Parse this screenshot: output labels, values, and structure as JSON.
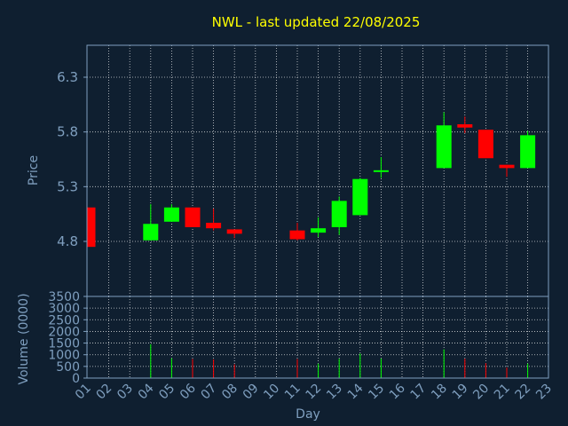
{
  "chart_data": {
    "type": "candlestick",
    "title": "NWL - last updated 22/08/2025",
    "xlabel": "Day",
    "colors": {
      "background": "#0f1f30",
      "up": "#00ff00",
      "down": "#ff0000",
      "text": "#7f9fbf",
      "title": "#ffff00",
      "grid": "#ffffff"
    },
    "x_ticks": [
      "01",
      "02",
      "03",
      "04",
      "05",
      "06",
      "07",
      "08",
      "09",
      "10",
      "11",
      "12",
      "13",
      "14",
      "15",
      "16",
      "17",
      "18",
      "19",
      "20",
      "21",
      "22",
      "23"
    ],
    "price_panel": {
      "ylabel": "Price",
      "ylim": [
        4.8,
        6.3
      ],
      "y_ticks": [
        4.8,
        5.3,
        5.8,
        6.3
      ],
      "y_tick_labels": [
        "4.8",
        "5.3",
        "5.8",
        "6.3"
      ]
    },
    "volume_panel": {
      "ylabel": "Volume (0000)",
      "ylim": [
        0,
        3500
      ],
      "y_ticks": [
        0,
        500,
        1000,
        1500,
        2000,
        2500,
        3000,
        3500
      ],
      "y_tick_labels": [
        "0",
        "500",
        "1000",
        "1500",
        "2000",
        "2500",
        "3000",
        "3500"
      ]
    },
    "candles": [
      {
        "day": 1,
        "open": 5.11,
        "high": 5.11,
        "low": 4.75,
        "close": 4.75,
        "volume": 0
      },
      {
        "day": 4,
        "open": 4.81,
        "high": 5.14,
        "low": 4.81,
        "close": 4.96,
        "volume": 1450
      },
      {
        "day": 5,
        "open": 4.98,
        "high": 5.14,
        "low": 4.98,
        "close": 5.11,
        "volume": 850
      },
      {
        "day": 6,
        "open": 5.11,
        "high": 5.11,
        "low": 4.93,
        "close": 4.93,
        "volume": 820
      },
      {
        "day": 7,
        "open": 4.97,
        "high": 5.1,
        "low": 4.9,
        "close": 4.92,
        "volume": 800
      },
      {
        "day": 8,
        "open": 4.91,
        "high": 4.91,
        "low": 4.83,
        "close": 4.87,
        "volume": 590
      },
      {
        "day": 11,
        "open": 4.9,
        "high": 4.97,
        "low": 4.81,
        "close": 4.82,
        "volume": 820
      },
      {
        "day": 12,
        "open": 4.88,
        "high": 5.02,
        "low": 4.84,
        "close": 4.92,
        "volume": 620
      },
      {
        "day": 13,
        "open": 4.93,
        "high": 5.21,
        "low": 4.86,
        "close": 5.17,
        "volume": 830
      },
      {
        "day": 14,
        "open": 5.04,
        "high": 5.38,
        "low": 5.04,
        "close": 5.37,
        "volume": 1050
      },
      {
        "day": 15,
        "open": 5.44,
        "high": 5.57,
        "low": 5.38,
        "close": 5.45,
        "volume": 840
      },
      {
        "day": 18,
        "open": 5.47,
        "high": 5.98,
        "low": 5.47,
        "close": 5.86,
        "volume": 1230
      },
      {
        "day": 19,
        "open": 5.87,
        "high": 5.94,
        "low": 5.79,
        "close": 5.84,
        "volume": 830
      },
      {
        "day": 20,
        "open": 5.82,
        "high": 5.82,
        "low": 5.56,
        "close": 5.56,
        "volume": 640
      },
      {
        "day": 21,
        "open": 5.5,
        "high": 5.5,
        "low": 5.39,
        "close": 5.47,
        "volume": 450
      },
      {
        "day": 22,
        "open": 5.47,
        "high": 5.81,
        "low": 5.47,
        "close": 5.77,
        "volume": 620
      }
    ]
  }
}
